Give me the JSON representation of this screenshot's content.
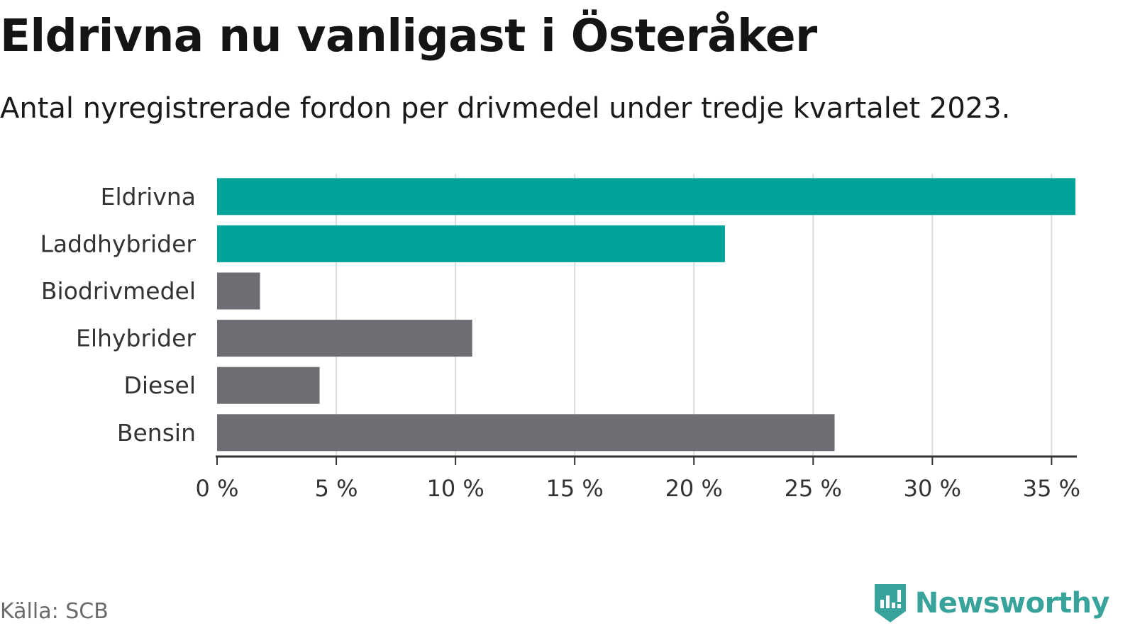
{
  "header": {
    "title": "Eldrivna nu vanligast i Österåker",
    "subtitle": "Antal nyregistrerade fordon per drivmedel under tredje kvartalet 2023."
  },
  "footer": {
    "source": "Källa: SCB",
    "brand": "Newsworthy"
  },
  "colors": {
    "highlight": "#00A39A",
    "default": "#6E6D73",
    "grid": "#DDDDDD",
    "axis": "#333333",
    "brand": "#37A39A"
  },
  "chart_data": {
    "type": "bar",
    "orientation": "horizontal",
    "title": "Eldrivna nu vanligast i Österåker",
    "subtitle": "Antal nyregistrerade fordon per drivmedel under tredje kvartalet 2023.",
    "xlabel": "",
    "ylabel": "",
    "unit": "%",
    "categories": [
      "Eldrivna",
      "Laddhybrider",
      "Biodrivmedel",
      "Elhybrider",
      "Diesel",
      "Bensin"
    ],
    "values": [
      36.0,
      21.3,
      1.8,
      10.7,
      4.3,
      25.9
    ],
    "highlighted": [
      true,
      true,
      false,
      false,
      false,
      false
    ],
    "xlim": [
      0,
      36
    ],
    "ticks": [
      0,
      5,
      10,
      15,
      20,
      25,
      30,
      35
    ],
    "tick_labels": [
      "0 %",
      "5 %",
      "10 %",
      "15 %",
      "20 %",
      "25 %",
      "30 %",
      "35 %"
    ],
    "grid": true,
    "legend": "none"
  }
}
